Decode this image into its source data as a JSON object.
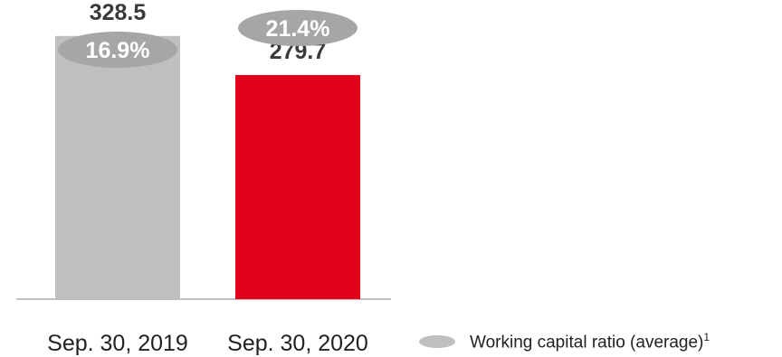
{
  "chart_data": {
    "type": "bar",
    "categories": [
      "Sep. 30, 2019",
      "Sep. 30, 2020"
    ],
    "series": [
      {
        "values": [
          328.5,
          279.7
        ],
        "colors": [
          "#bfbfbf",
          "#e2001a"
        ]
      }
    ],
    "value_labels": [
      "328.5",
      "279.7"
    ],
    "ratios": [
      {
        "label": "16.9%",
        "value": 16.9
      },
      {
        "label": "21.4%",
        "value": 21.4
      }
    ],
    "ratio_color": "#a6a6a6",
    "legend": [
      {
        "label": "Working capital ratio (average)",
        "footnote": "1",
        "shape": "ellipse",
        "color": "#bfbfbf"
      }
    ],
    "legend_position": "bottom-right",
    "ylim": [
      0,
      370
    ],
    "grid": false
  }
}
